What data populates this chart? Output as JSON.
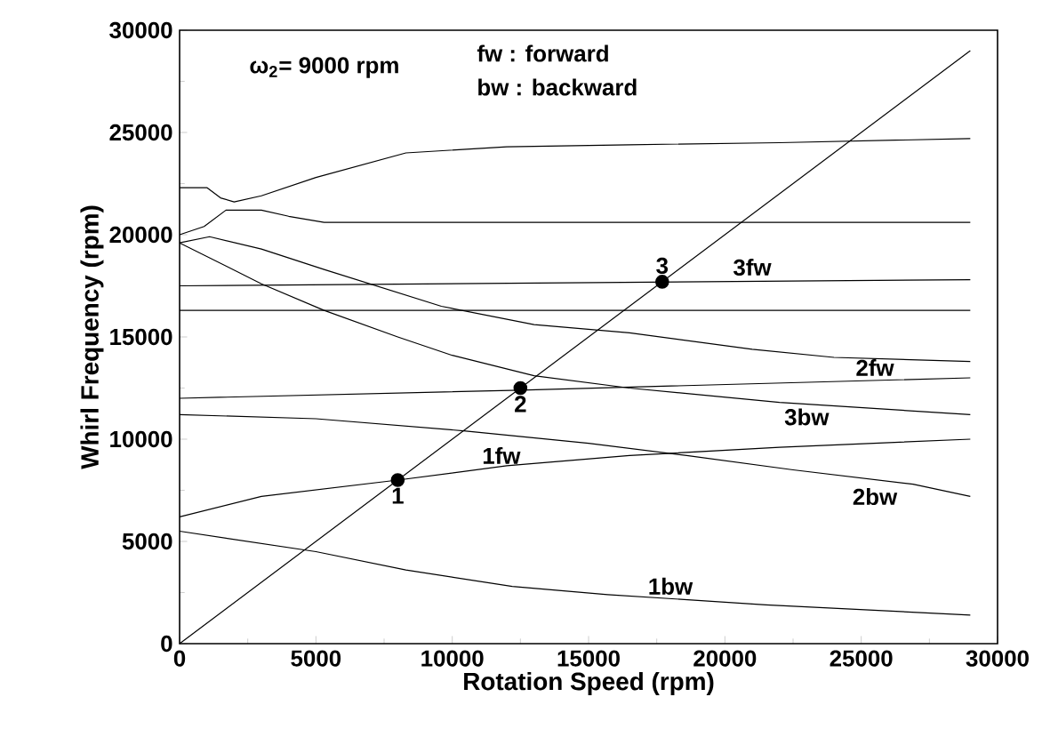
{
  "chart_data": {
    "type": "line",
    "xlabel": "Rotation Speed (rpm)",
    "ylabel": "Whirl Frequency (rpm)",
    "xlim": [
      0,
      30000
    ],
    "ylim": [
      0,
      30000
    ],
    "xticks": [
      0,
      5000,
      10000,
      15000,
      20000,
      25000,
      30000
    ],
    "yticks": [
      0,
      5000,
      10000,
      15000,
      20000,
      25000,
      30000
    ],
    "series": [
      {
        "color": "#000000",
        "x": [
          0,
          29000
        ],
        "values": [
          0,
          29000
        ]
      },
      {
        "color": "#000000",
        "x": [
          0,
          1000,
          1500,
          2000,
          3000,
          5000,
          8300,
          12000,
          16500,
          22000,
          29000
        ],
        "values": [
          22300,
          22300,
          21800,
          21600,
          21900,
          22800,
          24000,
          24300,
          24400,
          24500,
          24700
        ]
      },
      {
        "color": "#000000",
        "x": [
          0,
          900,
          1700,
          3000,
          4000,
          5300,
          8000,
          29000
        ],
        "values": [
          20000,
          20400,
          21200,
          21200,
          20900,
          20600,
          20600,
          20600
        ]
      },
      {
        "color": "#000000",
        "x": [
          0,
          29000
        ],
        "values": [
          17500,
          17800
        ]
      },
      {
        "color": "#000000",
        "x": [
          0,
          29000
        ],
        "values": [
          16300,
          16300
        ]
      },
      {
        "color": "#000000",
        "x": [
          0,
          1100,
          3000,
          5300,
          9600,
          13000,
          16500,
          21000,
          24000,
          29000
        ],
        "values": [
          19600,
          19900,
          19300,
          18300,
          16500,
          15600,
          15200,
          14400,
          14000,
          13800
        ]
      },
      {
        "color": "#000000",
        "x": [
          0,
          1500,
          3000,
          5300,
          8000,
          10000,
          13000,
          16500,
          22000,
          29000
        ],
        "values": [
          19600,
          18600,
          17600,
          16300,
          15000,
          14100,
          13100,
          12500,
          11800,
          11200
        ]
      },
      {
        "color": "#000000",
        "x": [
          0,
          12500,
          29000
        ],
        "values": [
          12000,
          12400,
          13000
        ]
      },
      {
        "color": "#000000",
        "x": [
          0,
          5000,
          10500,
          15000,
          18600,
          22500,
          26900,
          29000
        ],
        "values": [
          11200,
          11000,
          10400,
          9800,
          9200,
          8500,
          7800,
          7200
        ]
      },
      {
        "color": "#000000",
        "x": [
          0,
          3000,
          8000,
          12000,
          16500,
          22000,
          29000
        ],
        "values": [
          6200,
          7200,
          8000,
          8700,
          9200,
          9600,
          10000
        ]
      },
      {
        "color": "#000000",
        "x": [
          0,
          5000,
          8300,
          12200,
          15700,
          21500,
          29000
        ],
        "values": [
          5500,
          4500,
          3600,
          2800,
          2400,
          1900,
          1400
        ]
      },
      {
        "type": "scatter",
        "marker": "circle",
        "color": "#000000",
        "x": [
          8000,
          12500,
          17700
        ],
        "values": [
          8000,
          12500,
          17700
        ]
      }
    ],
    "annotations": [
      "ω$_{2}$= 9000 rpm",
      "fw  : forward",
      "bw : backward",
      {
        "text": "1",
        "x": 8000,
        "y": 8000
      },
      {
        "text": "2",
        "x": 12500,
        "y": 12500
      },
      {
        "text": "3",
        "x": 17700,
        "y": 17700
      },
      {
        "text": "3fw",
        "x": 21000,
        "y": 17700
      },
      {
        "text": "2fw",
        "x": 25500,
        "y": 12800
      },
      {
        "text": "3bw",
        "x": 23000,
        "y": 11800
      },
      {
        "text": "2bw",
        "x": 25500,
        "y": 7900
      },
      {
        "text": "1fw",
        "x": 11800,
        "y": 8500
      },
      {
        "text": "1bw",
        "x": 18000,
        "y": 2100
      }
    ]
  }
}
